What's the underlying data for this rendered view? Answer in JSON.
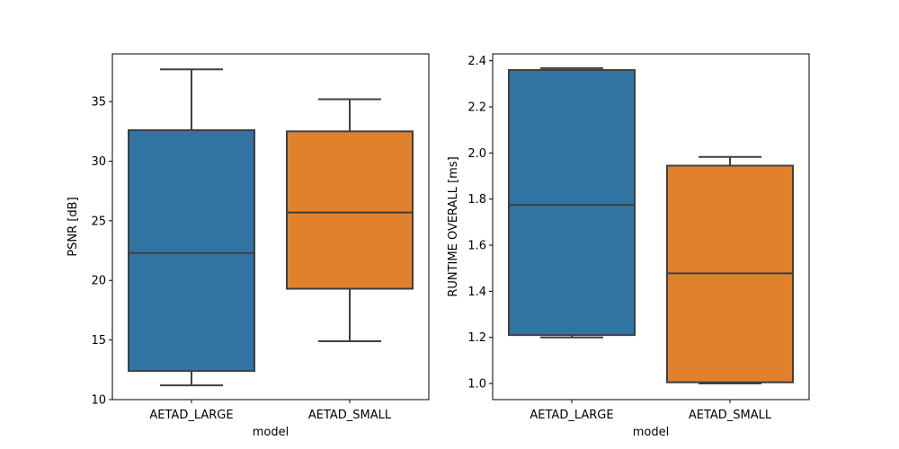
{
  "chart_data": [
    {
      "type": "box",
      "xlabel": "model",
      "ylabel": "PSNR [dB]",
      "ylim": [
        10,
        39
      ],
      "yticks": [
        10,
        15,
        20,
        25,
        30,
        35
      ],
      "categories": [
        "AETAD_LARGE",
        "AETAD_SMALL"
      ],
      "boxes": [
        {
          "category": "AETAD_LARGE",
          "color": "#3274a1",
          "whisker_low": 11.2,
          "q1": 12.4,
          "median": 22.3,
          "q3": 32.6,
          "whisker_high": 37.7
        },
        {
          "category": "AETAD_SMALL",
          "color": "#e1812c",
          "whisker_low": 14.9,
          "q1": 19.3,
          "median": 25.7,
          "q3": 32.5,
          "whisker_high": 35.2
        }
      ],
      "grid": false,
      "legend": "none"
    },
    {
      "type": "box",
      "xlabel": "model",
      "ylabel": "RUNTIME OVERALL [ms]",
      "ylim": [
        0.93,
        2.43
      ],
      "yticks": [
        1.0,
        1.2,
        1.4,
        1.6,
        1.8,
        2.0,
        2.2,
        2.4
      ],
      "categories": [
        "AETAD_LARGE",
        "AETAD_SMALL"
      ],
      "boxes": [
        {
          "category": "AETAD_LARGE",
          "color": "#3274a1",
          "whisker_low": 1.2,
          "q1": 1.21,
          "median": 1.775,
          "q3": 2.36,
          "whisker_high": 2.368
        },
        {
          "category": "AETAD_SMALL",
          "color": "#e1812c",
          "whisker_low": 1.0,
          "q1": 1.005,
          "median": 1.478,
          "q3": 1.945,
          "whisker_high": 1.983
        }
      ],
      "grid": false,
      "legend": "none"
    }
  ]
}
